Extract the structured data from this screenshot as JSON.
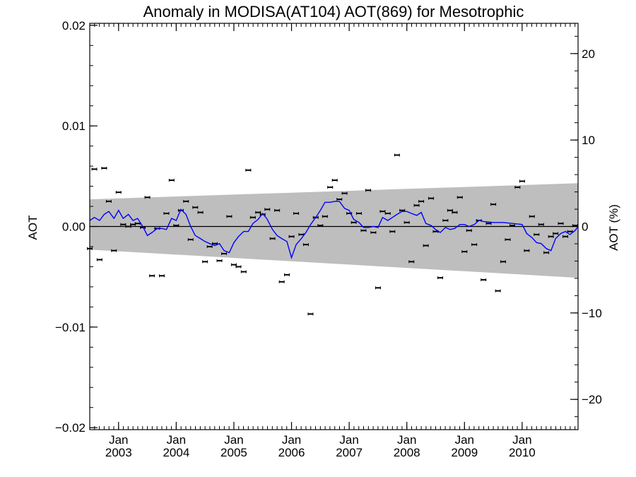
{
  "chart_data": {
    "type": "scatter",
    "title": "Anomaly in MODISA(AT104) AOT(869) for Mesotrophic",
    "ylabel": "AOT",
    "y2label": "AOT (%)",
    "xlim": [
      2002.5,
      2010.97
    ],
    "ylim": [
      -0.0202,
      0.0202
    ],
    "y2lim": [
      -23.5,
      23.5
    ],
    "y_ticks": [
      {
        "value": -0.02,
        "label": "−0.02"
      },
      {
        "value": -0.01,
        "label": "−0.01"
      },
      {
        "value": 0.0,
        "label": "0.00"
      },
      {
        "value": 0.01,
        "label": "0.01"
      },
      {
        "value": 0.02,
        "label": "0.02"
      }
    ],
    "y2_ticks": [
      {
        "value": -20,
        "label": "−20"
      },
      {
        "value": -10,
        "label": "−10"
      },
      {
        "value": 0,
        "label": "0"
      },
      {
        "value": 10,
        "label": "10"
      },
      {
        "value": 20,
        "label": "20"
      }
    ],
    "x_ticks": [
      {
        "value": 2003.0,
        "month": "Jan",
        "year": "2003"
      },
      {
        "value": 2004.0,
        "month": "Jan",
        "year": "2004"
      },
      {
        "value": 2005.0,
        "month": "Jan",
        "year": "2005"
      },
      {
        "value": 2006.0,
        "month": "Jan",
        "year": "2006"
      },
      {
        "value": 2007.0,
        "month": "Jan",
        "year": "2007"
      },
      {
        "value": 2008.0,
        "month": "Jan",
        "year": "2008"
      },
      {
        "value": 2009.0,
        "month": "Jan",
        "year": "2009"
      },
      {
        "value": 2010.0,
        "month": "Jan",
        "year": "2010"
      }
    ],
    "band": {
      "x": [
        2002.5,
        2010.97
      ],
      "upper": [
        0.0027,
        0.0043
      ],
      "lower": [
        -0.0023,
        -0.0051
      ],
      "color": "#bebebe"
    },
    "zero_line": 0.0,
    "points": {
      "x": [
        2002.5,
        2002.58,
        2002.67,
        2002.75,
        2002.83,
        2002.92,
        2003.0,
        2003.08,
        2003.17,
        2003.25,
        2003.33,
        2003.42,
        2003.5,
        2003.58,
        2003.67,
        2003.75,
        2003.83,
        2003.92,
        2004.0,
        2004.08,
        2004.17,
        2004.25,
        2004.33,
        2004.42,
        2004.5,
        2004.58,
        2004.67,
        2004.75,
        2004.83,
        2004.92,
        2005.0,
        2005.08,
        2005.17,
        2005.25,
        2005.33,
        2005.42,
        2005.5,
        2005.58,
        2005.67,
        2005.75,
        2005.83,
        2005.92,
        2006.0,
        2006.08,
        2006.17,
        2006.25,
        2006.33,
        2006.42,
        2006.5,
        2006.58,
        2006.67,
        2006.75,
        2006.83,
        2006.92,
        2007.0,
        2007.08,
        2007.17,
        2007.25,
        2007.33,
        2007.42,
        2007.5,
        2007.58,
        2007.67,
        2007.75,
        2007.83,
        2007.92,
        2008.0,
        2008.08,
        2008.17,
        2008.25,
        2008.33,
        2008.42,
        2008.5,
        2008.58,
        2008.67,
        2008.75,
        2008.83,
        2008.92,
        2009.0,
        2009.08,
        2009.17,
        2009.25,
        2009.33,
        2009.42,
        2009.5,
        2009.58,
        2009.67,
        2009.75,
        2009.83,
        2009.92,
        2010.0,
        2010.08,
        2010.17,
        2010.25,
        2010.33,
        2010.42,
        2010.5,
        2010.58,
        2010.67,
        2010.75,
        2010.83,
        2010.92
      ],
      "y": [
        -0.0022,
        0.0057,
        -0.0033,
        0.0058,
        0.0025,
        -0.0024,
        0.0034,
        0.0002,
        0.0,
        0.0002,
        0.0003,
        -0.0001,
        0.0029,
        -0.0049,
        -0.0002,
        -0.0049,
        0.0013,
        0.0046,
        0.0001,
        0.0016,
        0.0025,
        -0.0013,
        0.0019,
        0.0014,
        -0.0035,
        -0.002,
        -0.0017,
        -0.0034,
        -0.0027,
        0.001,
        -0.0038,
        -0.004,
        -0.0045,
        0.0056,
        0.0009,
        0.0014,
        0.0012,
        0.0017,
        -0.0012,
        0.0016,
        -0.0055,
        -0.0048,
        -0.001,
        0.0013,
        -0.0008,
        -0.0018,
        -0.0087,
        0.0009,
        0.0001,
        0.001,
        0.0039,
        0.0046,
        0.0027,
        0.0033,
        0.0013,
        0.0004,
        0.0013,
        -0.0004,
        0.0036,
        -0.0006,
        -0.0061,
        0.0015,
        0.0013,
        -0.0005,
        0.0071,
        0.0016,
        0.0004,
        -0.0035,
        0.0021,
        0.0025,
        -0.0019,
        0.0028,
        -0.0005,
        -0.0051,
        0.0006,
        0.0016,
        0.0014,
        0.0029,
        -0.0025,
        -0.0004,
        -0.0018,
        0.0006,
        -0.0053,
        0.0003,
        0.0022,
        -0.0064,
        -0.0035,
        -0.0013,
        0.0001,
        0.0039,
        0.0045,
        -0.0024,
        0.001,
        -0.0008,
        0.0002,
        -0.0026,
        -0.001,
        -0.0007,
        0.0003,
        -0.001,
        -0.0005,
        0.0001
      ]
    },
    "smooth_line": {
      "color": "#0000ff",
      "x": [
        2002.5,
        2002.58,
        2002.67,
        2002.75,
        2002.83,
        2002.92,
        2003.0,
        2003.08,
        2003.17,
        2003.25,
        2003.33,
        2003.42,
        2003.5,
        2003.58,
        2003.67,
        2003.75,
        2003.83,
        2003.92,
        2004.0,
        2004.08,
        2004.17,
        2004.25,
        2004.33,
        2004.42,
        2004.5,
        2004.58,
        2004.67,
        2004.75,
        2004.83,
        2004.92,
        2005.0,
        2005.08,
        2005.17,
        2005.25,
        2005.33,
        2005.42,
        2005.5,
        2005.58,
        2005.67,
        2005.75,
        2005.83,
        2005.92,
        2006.0,
        2006.08,
        2006.17,
        2006.25,
        2006.33,
        2006.42,
        2006.5,
        2006.58,
        2006.67,
        2006.75,
        2006.83,
        2006.92,
        2007.0,
        2007.08,
        2007.17,
        2007.25,
        2007.33,
        2007.42,
        2007.5,
        2007.58,
        2007.67,
        2007.75,
        2007.83,
        2007.92,
        2008.0,
        2008.08,
        2008.17,
        2008.25,
        2008.33,
        2008.42,
        2008.5,
        2008.58,
        2008.67,
        2008.75,
        2008.83,
        2008.92,
        2009.0,
        2009.08,
        2009.17,
        2009.25,
        2009.33,
        2009.5,
        2009.67,
        2009.83,
        2010.0,
        2010.08,
        2010.17,
        2010.25,
        2010.33,
        2010.42,
        2010.5,
        2010.58,
        2010.67,
        2010.75,
        2010.83,
        2010.92,
        2010.97
      ],
      "y": [
        0.0006,
        0.0009,
        0.0006,
        0.0012,
        0.0015,
        0.0008,
        0.0016,
        0.0008,
        0.0012,
        0.0006,
        0.0008,
        0.0,
        -0.0009,
        -0.0006,
        -0.0002,
        -0.0002,
        -0.0003,
        0.0008,
        0.0006,
        0.0017,
        0.0012,
        0.0,
        -0.0009,
        -0.0012,
        -0.0015,
        -0.0017,
        -0.0019,
        -0.0017,
        -0.0024,
        -0.0026,
        -0.0016,
        -0.001,
        -0.0005,
        -0.0005,
        0.0003,
        0.0007,
        0.0013,
        0.0007,
        -0.0003,
        -0.0009,
        -0.0012,
        -0.0015,
        -0.0031,
        -0.0018,
        -0.0012,
        -0.0006,
        0.0002,
        0.0009,
        0.0016,
        0.0024,
        0.0024,
        0.0025,
        0.0025,
        0.0018,
        0.0016,
        0.0007,
        0.0004,
        -0.0001,
        -0.0001,
        0.0,
        -0.0001,
        0.0009,
        0.0006,
        0.0009,
        0.0012,
        0.0015,
        0.0015,
        0.0013,
        0.0011,
        0.0014,
        0.0003,
        0.0001,
        -0.0003,
        -0.0006,
        -0.0001,
        -0.0003,
        -0.0002,
        0.0002,
        0.0002,
        0.0,
        0.0002,
        0.0006,
        0.0005,
        0.0004,
        0.0004,
        0.0003,
        0.0002,
        -0.0007,
        -0.0011,
        -0.0016,
        -0.0017,
        -0.0022,
        -0.0024,
        -0.0012,
        -0.0007,
        -0.0005,
        -0.0008,
        -0.0004,
        0.0
      ]
    }
  }
}
